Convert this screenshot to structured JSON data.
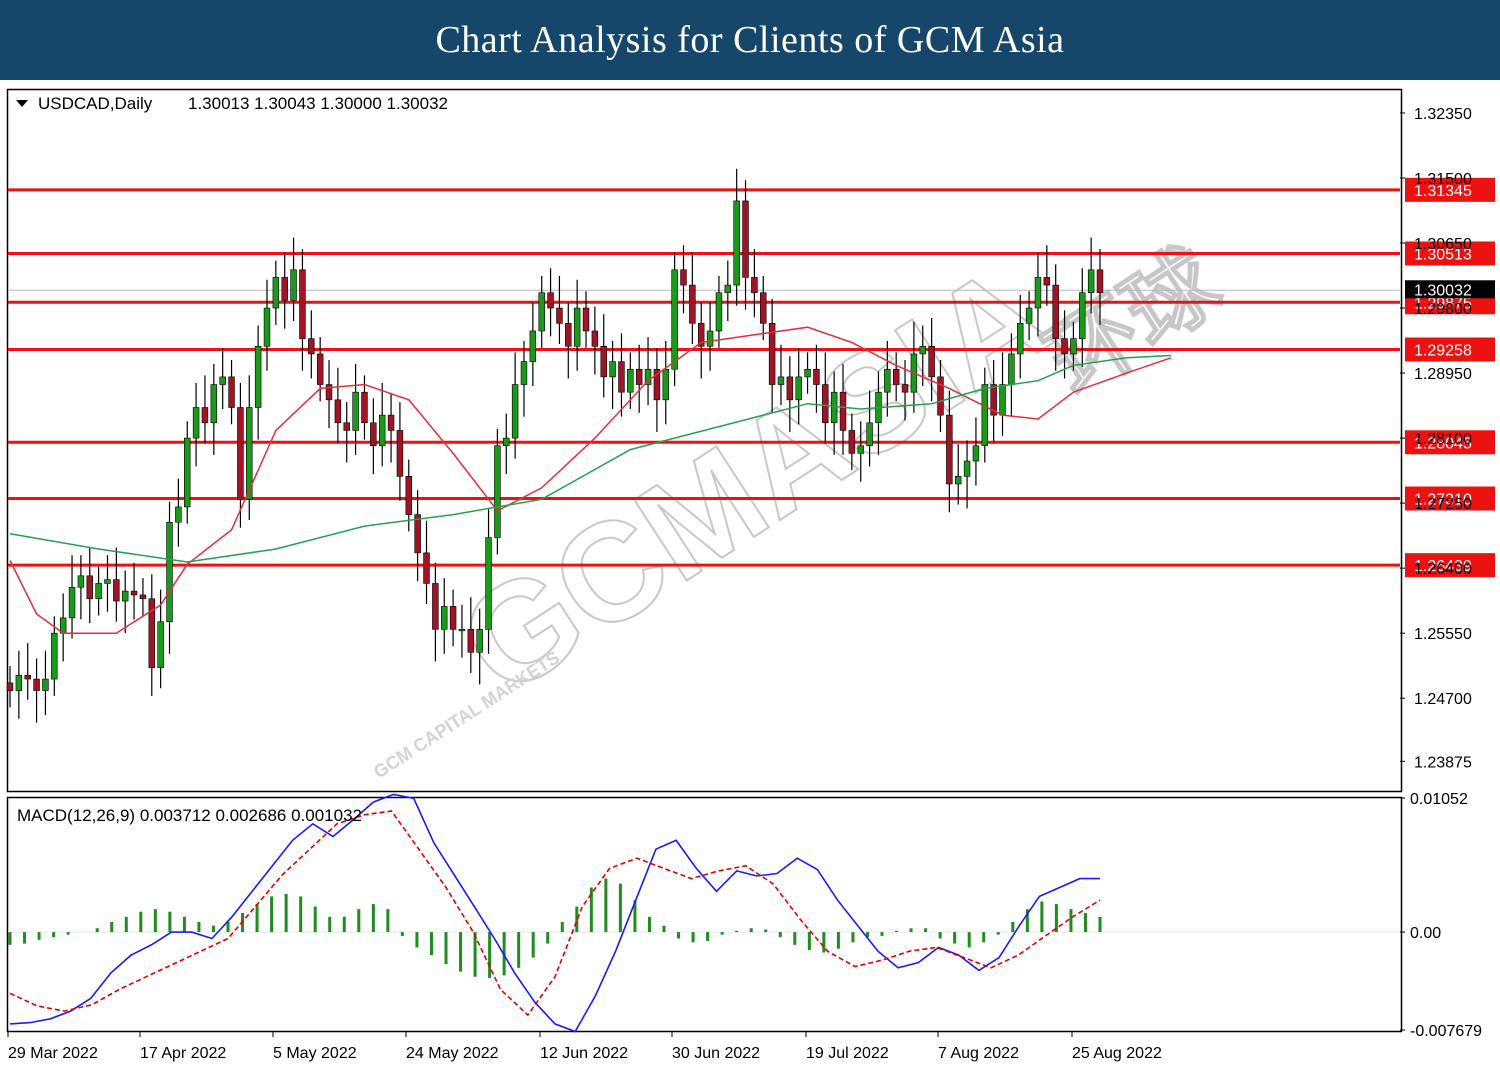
{
  "banner": {
    "title": "Chart Analysis for Clients of GCM Asia"
  },
  "watermark": {
    "brand": "GCMASIA",
    "chinese": "环球",
    "subtitle": "GCM CAPITAL MARKETS"
  },
  "chart_data": [
    {
      "type": "candlestick",
      "symbol_header": "USDCAD,Daily",
      "ohlc_readout": "1.30013 1.30043 1.30000 1.30032",
      "current_price_label": "1.30032",
      "ylim": [
        1.235,
        1.3265
      ],
      "y_ticks": [
        "1.32350",
        "1.31500",
        "1.30650",
        "1.29800",
        "1.28950",
        "1.28100",
        "1.27250",
        "1.26400",
        "1.25550",
        "1.24700",
        "1.23875"
      ],
      "x_labels": [
        "29 Mar 2022",
        "17 Apr 2022",
        "5 May 2022",
        "24 May 2022",
        "12 Jun 2022",
        "30 Jun 2022",
        "19 Jul 2022",
        "7 Aug 2022",
        "25 Aug 2022"
      ],
      "horizontal_levels": [
        1.31345,
        1.30513,
        1.29875,
        1.29258,
        1.28045,
        1.2731,
        1.26439
      ],
      "horizontal_level_labels": [
        "1.31345",
        "1.30513",
        "1.29875",
        "1.29258",
        "1.28045",
        "1.27310",
        "1.26439"
      ],
      "close_path": [
        1.248,
        1.25,
        1.2495,
        1.248,
        1.2495,
        1.2555,
        1.2575,
        1.2615,
        1.263,
        1.26,
        1.262,
        1.2625,
        1.2597,
        1.261,
        1.2605,
        1.26,
        1.251,
        1.257,
        1.27,
        1.272,
        1.281,
        1.285,
        1.283,
        1.288,
        1.289,
        1.285,
        1.273,
        1.285,
        1.293,
        1.298,
        1.302,
        1.299,
        1.303,
        1.294,
        1.292,
        1.288,
        1.286,
        1.283,
        1.282,
        1.287,
        1.283,
        1.28,
        1.284,
        1.282,
        1.276,
        1.271,
        1.266,
        1.262,
        1.256,
        1.259,
        1.256,
        1.256,
        1.253,
        1.256,
        1.268,
        1.28,
        1.281,
        1.288,
        1.291,
        1.295,
        1.3,
        1.298,
        1.296,
        1.293,
        1.298,
        1.295,
        1.293,
        1.289,
        1.291,
        1.287,
        1.29,
        1.288,
        1.29,
        1.286,
        1.29,
        1.303,
        1.301,
        1.296,
        1.293,
        1.295,
        1.3,
        1.301,
        1.312,
        1.302,
        1.3,
        1.296,
        1.288,
        1.289,
        1.286,
        1.289,
        1.29,
        1.288,
        1.283,
        1.287,
        1.282,
        1.279,
        1.28,
        1.283,
        1.287,
        1.29,
        1.288,
        1.287,
        1.292,
        1.293,
        1.289,
        1.284,
        1.275,
        1.276,
        1.278,
        1.28,
        1.288,
        1.284,
        1.288,
        1.292,
        1.296,
        1.298,
        1.302,
        1.301,
        1.294,
        1.292,
        1.294,
        1.3,
        1.303,
        1.3
      ],
      "overlays": [
        {
          "name": "MA red",
          "color": "#e0303e",
          "points": [
            [
              0,
              1.265
            ],
            [
              3,
              1.258
            ],
            [
              6,
              1.2555
            ],
            [
              12,
              1.2555
            ],
            [
              17,
              1.2592
            ],
            [
              20,
              1.2645
            ],
            [
              25,
              1.269
            ],
            [
              30,
              1.282
            ],
            [
              35,
              1.2875
            ],
            [
              40,
              1.288
            ],
            [
              45,
              1.286
            ],
            [
              50,
              1.279
            ],
            [
              55,
              1.2715
            ],
            [
              60,
              1.2745
            ],
            [
              66,
              1.281
            ],
            [
              72,
              1.2885
            ],
            [
              78,
              1.2935
            ],
            [
              84,
              1.2945
            ],
            [
              90,
              1.2955
            ],
            [
              95,
              1.2935
            ],
            [
              100,
              1.2905
            ],
            [
              106,
              1.2875
            ],
            [
              112,
              1.284
            ],
            [
              116,
              1.2835
            ],
            [
              120,
              1.287
            ],
            [
              126,
              1.2895
            ],
            [
              131,
              1.2915
            ]
          ]
        },
        {
          "name": "MA green",
          "color": "#28a050",
          "points": [
            [
              0,
              1.2685
            ],
            [
              10,
              1.2665
            ],
            [
              20,
              1.2648
            ],
            [
              30,
              1.2665
            ],
            [
              40,
              1.2695
            ],
            [
              50,
              1.271
            ],
            [
              60,
              1.273
            ],
            [
              70,
              1.2795
            ],
            [
              80,
              1.2825
            ],
            [
              90,
              1.2855
            ],
            [
              96,
              1.2848
            ],
            [
              104,
              1.2855
            ],
            [
              110,
              1.2875
            ],
            [
              116,
              1.2885
            ],
            [
              120,
              1.2905
            ],
            [
              126,
              1.2915
            ],
            [
              131,
              1.2918
            ]
          ]
        }
      ]
    },
    {
      "type": "line+bar",
      "indicator_header": "MACD(12,26,9) 0.003712 0.002686 0.001032",
      "ylim": [
        -0.007679,
        0.01052
      ],
      "y_ticks": [
        "0.01052",
        "0.00",
        "-0.007679"
      ],
      "series": [
        {
          "color": "#1a1aff",
          "values": [
            -0.0072,
            -0.0071,
            -0.0068,
            -0.0062,
            -0.0052,
            -0.0032,
            -0.0018,
            -0.001,
            0.0,
            0.0,
            -0.0005,
            0.0012,
            0.0032,
            0.0052,
            0.0072,
            0.0085,
            0.0075,
            0.0088,
            0.0102,
            0.0108,
            0.0105,
            0.007,
            0.0045,
            0.002,
            -0.0005,
            -0.0032,
            -0.0055,
            -0.0072,
            -0.0078,
            -0.005,
            -0.0015,
            0.0025,
            0.0065,
            0.0072,
            0.005,
            0.0032,
            0.0048,
            0.0044,
            0.0046,
            0.0058,
            0.0049,
            0.0025,
            0.0005,
            -0.0015,
            -0.0028,
            -0.0024,
            -0.0012,
            -0.0018,
            -0.003,
            -0.002,
            0.0005,
            0.0028,
            0.0035,
            0.0042,
            0.0042
          ]
        },
        {
          "color": "#e00000",
          "dashed": true,
          "values": [
            -0.0048,
            -0.0058,
            -0.0062,
            -0.0057,
            -0.0045,
            -0.0035,
            -0.0025,
            -0.0015,
            -0.0005,
            0.002,
            0.0045,
            0.0065,
            0.0085,
            0.0092,
            0.0095,
            0.0065,
            0.0035,
            0.0,
            -0.0045,
            -0.0065,
            -0.0035,
            0.002,
            0.005,
            0.0058,
            0.005,
            0.0042,
            0.0048,
            0.0052,
            0.0038,
            0.001,
            -0.0015,
            -0.0027,
            -0.0022,
            -0.0015,
            -0.0012,
            -0.002,
            -0.0028,
            -0.0018,
            -0.0003,
            0.0012,
            0.0025
          ]
        },
        {
          "color": "#1e8c1e",
          "values": [
            -0.001,
            -0.0009,
            -0.0006,
            -0.0004,
            -0.0002,
            0.0,
            0.0003,
            0.0008,
            0.0012,
            0.0016,
            0.0018,
            0.0016,
            0.0012,
            0.0008,
            0.0005,
            0.0008,
            0.0015,
            0.0022,
            0.0028,
            0.003,
            0.0028,
            0.002,
            0.0012,
            0.0012,
            0.0018,
            0.0022,
            0.0018,
            -0.0003,
            -0.0012,
            -0.0018,
            -0.0025,
            -0.0031,
            -0.0035,
            -0.0036,
            -0.0034,
            -0.0028,
            -0.002,
            -0.0009,
            0.0008,
            0.002,
            0.0035,
            0.0042,
            0.0038,
            0.0025,
            0.0012,
            0.0005,
            -0.0005,
            -0.0008,
            -0.0007,
            -0.0002,
            0.0001,
            0.0003,
            0.0002,
            -0.0004,
            -0.001,
            -0.0014,
            -0.0016,
            -0.0013,
            -0.0008,
            -0.0004,
            -0.0003,
            0.0001,
            0.0003,
            0.0003,
            -0.0005,
            -0.0009,
            -0.0012,
            -0.0008,
            -0.0002,
            0.0008,
            0.0018,
            0.0024,
            0.0022,
            0.0018,
            0.0015,
            0.0012
          ]
        }
      ]
    }
  ]
}
